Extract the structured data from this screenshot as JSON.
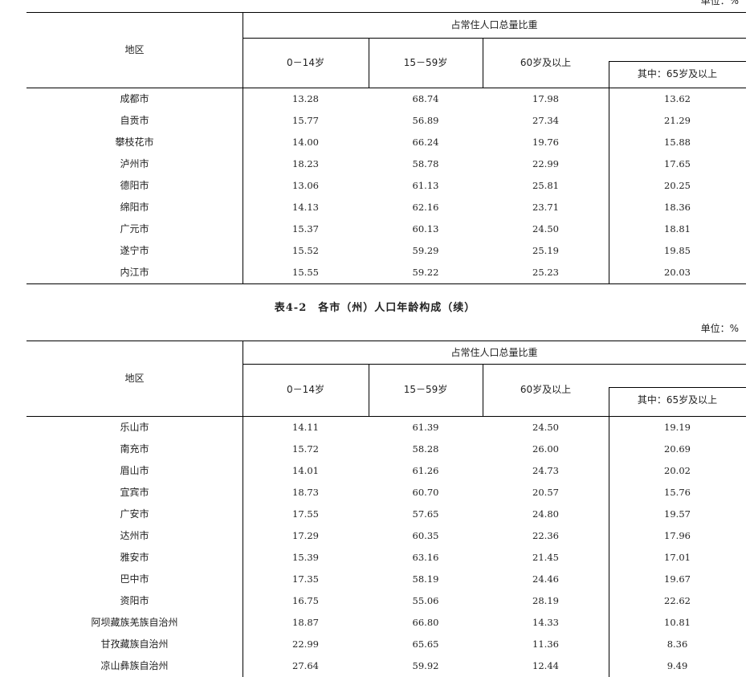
{
  "unit_label": "单位：%",
  "caption": "表4-2　各市（州）人口年龄构成（续）",
  "header": {
    "region": "地区",
    "share": "占常住人口总量比重",
    "age_0_14": "0－14岁",
    "age_15_59": "15－59岁",
    "age_60_plus": "60岁及以上",
    "age_65_plus": "其中：65岁及以上"
  },
  "table1": {
    "rows": [
      {
        "region": "成都市",
        "a": "13.28",
        "b": "68.74",
        "c": "17.98",
        "d": "13.62"
      },
      {
        "region": "自贡市",
        "a": "15.77",
        "b": "56.89",
        "c": "27.34",
        "d": "21.29"
      },
      {
        "region": "攀枝花市",
        "a": "14.00",
        "b": "66.24",
        "c": "19.76",
        "d": "15.88"
      },
      {
        "region": "泸州市",
        "a": "18.23",
        "b": "58.78",
        "c": "22.99",
        "d": "17.65"
      },
      {
        "region": "德阳市",
        "a": "13.06",
        "b": "61.13",
        "c": "25.81",
        "d": "20.25"
      },
      {
        "region": "绵阳市",
        "a": "14.13",
        "b": "62.16",
        "c": "23.71",
        "d": "18.36"
      },
      {
        "region": "广元市",
        "a": "15.37",
        "b": "60.13",
        "c": "24.50",
        "d": "18.81"
      },
      {
        "region": "遂宁市",
        "a": "15.52",
        "b": "59.29",
        "c": "25.19",
        "d": "19.85"
      },
      {
        "region": "内江市",
        "a": "15.55",
        "b": "59.22",
        "c": "25.23",
        "d": "20.03"
      }
    ]
  },
  "table2": {
    "rows": [
      {
        "region": "乐山市",
        "a": "14.11",
        "b": "61.39",
        "c": "24.50",
        "d": "19.19"
      },
      {
        "region": "南充市",
        "a": "15.72",
        "b": "58.28",
        "c": "26.00",
        "d": "20.69"
      },
      {
        "region": "眉山市",
        "a": "14.01",
        "b": "61.26",
        "c": "24.73",
        "d": "20.02"
      },
      {
        "region": "宜宾市",
        "a": "18.73",
        "b": "60.70",
        "c": "20.57",
        "d": "15.76"
      },
      {
        "region": "广安市",
        "a": "17.55",
        "b": "57.65",
        "c": "24.80",
        "d": "19.57"
      },
      {
        "region": "达州市",
        "a": "17.29",
        "b": "60.35",
        "c": "22.36",
        "d": "17.96"
      },
      {
        "region": "雅安市",
        "a": "15.39",
        "b": "63.16",
        "c": "21.45",
        "d": "17.01"
      },
      {
        "region": "巴中市",
        "a": "17.35",
        "b": "58.19",
        "c": "24.46",
        "d": "19.67"
      },
      {
        "region": "资阳市",
        "a": "16.75",
        "b": "55.06",
        "c": "28.19",
        "d": "22.62"
      },
      {
        "region": "阿坝藏族羌族自治州",
        "a": "18.87",
        "b": "66.80",
        "c": "14.33",
        "d": "10.81"
      },
      {
        "region": "甘孜藏族自治州",
        "a": "22.99",
        "b": "65.65",
        "c": "11.36",
        "d": "8.36"
      },
      {
        "region": "凉山彝族自治州",
        "a": "27.64",
        "b": "59.92",
        "c": "12.44",
        "d": "9.49"
      }
    ]
  }
}
